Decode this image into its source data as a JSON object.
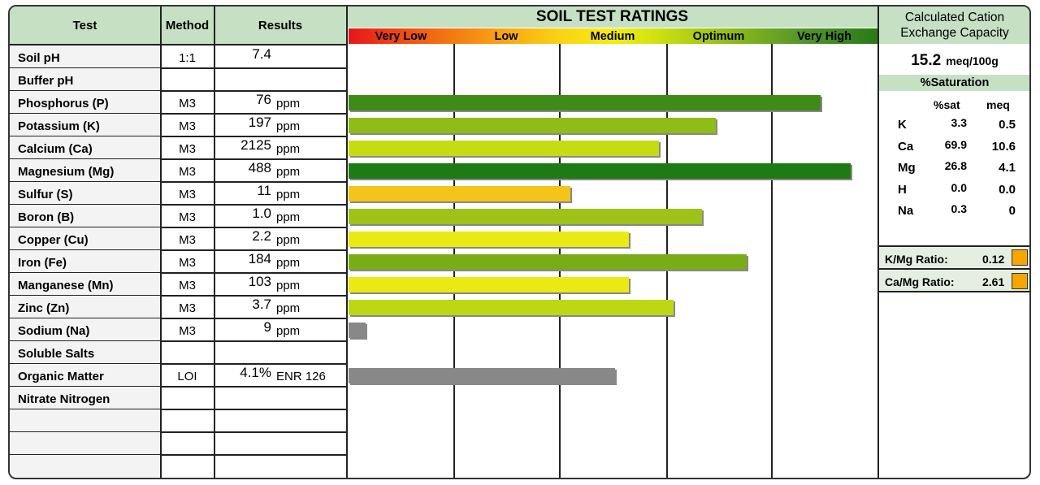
{
  "headers": {
    "test": "Test",
    "method": "Method",
    "results": "Results"
  },
  "chart_data": {
    "type": "bar",
    "title": "SOIL TEST RATINGS",
    "rating_categories": [
      "Very Low",
      "Low",
      "Medium",
      "Optimum",
      "Very High"
    ],
    "bars": [
      {
        "test": "Phosphorus (P)",
        "score": 4.46,
        "color": "#3f8b1a"
      },
      {
        "test": "Potassium (K)",
        "score": 3.47,
        "color": "#8fbc17"
      },
      {
        "test": "Calcium (Ca)",
        "score": 2.93,
        "color": "#c5dc14"
      },
      {
        "test": "Magnesium (Mg)",
        "score": 4.75,
        "color": "#1e7a12"
      },
      {
        "test": "Sulfur (S)",
        "score": 2.1,
        "color": "#f5c319"
      },
      {
        "test": "Boron (B)",
        "score": 3.34,
        "color": "#9dc218"
      },
      {
        "test": "Copper (Cu)",
        "score": 2.65,
        "color": "#eaea12"
      },
      {
        "test": "Iron (Fe)",
        "score": 3.76,
        "color": "#79ad18"
      },
      {
        "test": "Manganese (Mn)",
        "score": 2.65,
        "color": "#eaea12"
      },
      {
        "test": "Zinc (Zn)",
        "score": 3.07,
        "color": "#bcd814"
      },
      {
        "test": "Sodium (Na)",
        "score": 0.16,
        "color": "#888888"
      },
      {
        "test": "Organic Matter",
        "score": 2.52,
        "color": "#888888"
      }
    ]
  },
  "rows": [
    {
      "test": "Soil pH",
      "method": "1:1",
      "value": "7.4",
      "unit": ""
    },
    {
      "test": "Buffer pH",
      "method": "",
      "value": "",
      "unit": ""
    },
    {
      "test": "Phosphorus (P)",
      "method": "M3",
      "value": "76",
      "unit": "ppm"
    },
    {
      "test": "Potassium (K)",
      "method": "M3",
      "value": "197",
      "unit": "ppm"
    },
    {
      "test": "Calcium (Ca)",
      "method": "M3",
      "value": "2125",
      "unit": "ppm"
    },
    {
      "test": "Magnesium (Mg)",
      "method": "M3",
      "value": "488",
      "unit": "ppm"
    },
    {
      "test": "Sulfur (S)",
      "method": "M3",
      "value": "11",
      "unit": "ppm"
    },
    {
      "test": "Boron (B)",
      "method": "M3",
      "value": "1.0",
      "unit": "ppm"
    },
    {
      "test": "Copper (Cu)",
      "method": "M3",
      "value": "2.2",
      "unit": "ppm"
    },
    {
      "test": "Iron (Fe)",
      "method": "M3",
      "value": "184",
      "unit": "ppm"
    },
    {
      "test": "Manganese (Mn)",
      "method": "M3",
      "value": "103",
      "unit": "ppm"
    },
    {
      "test": "Zinc (Zn)",
      "method": "M3",
      "value": "3.7",
      "unit": "ppm"
    },
    {
      "test": "Sodium (Na)",
      "method": "M3",
      "value": "9",
      "unit": "ppm"
    },
    {
      "test": "Soluble Salts",
      "method": "",
      "value": "",
      "unit": ""
    },
    {
      "test": "Organic Matter",
      "method": "LOI",
      "value": "4.1%",
      "unit": "ENR 126"
    },
    {
      "test": "Nitrate Nitrogen",
      "method": "",
      "value": "",
      "unit": ""
    }
  ],
  "cec": {
    "title_line1": "Calculated Cation",
    "title_line2": "Exchange Capacity",
    "value": "15.2",
    "unit": "meq/100g",
    "saturation_title": "%Saturation",
    "col_sat": "%sat",
    "col_meq": "meq",
    "cations": [
      {
        "name": "K",
        "sat": "3.3",
        "meq": "0.5"
      },
      {
        "name": "Ca",
        "sat": "69.9",
        "meq": "10.6"
      },
      {
        "name": "Mg",
        "sat": "26.8",
        "meq": "4.1"
      },
      {
        "name": "H",
        "sat": "0.0",
        "meq": "0.0"
      },
      {
        "name": "Na",
        "sat": "0.3",
        "meq": "0"
      }
    ],
    "km_label": "K/Mg Ratio:",
    "km_value": "0.12",
    "cam_label": "Ca/Mg Ratio:",
    "cam_value": "2.61"
  }
}
